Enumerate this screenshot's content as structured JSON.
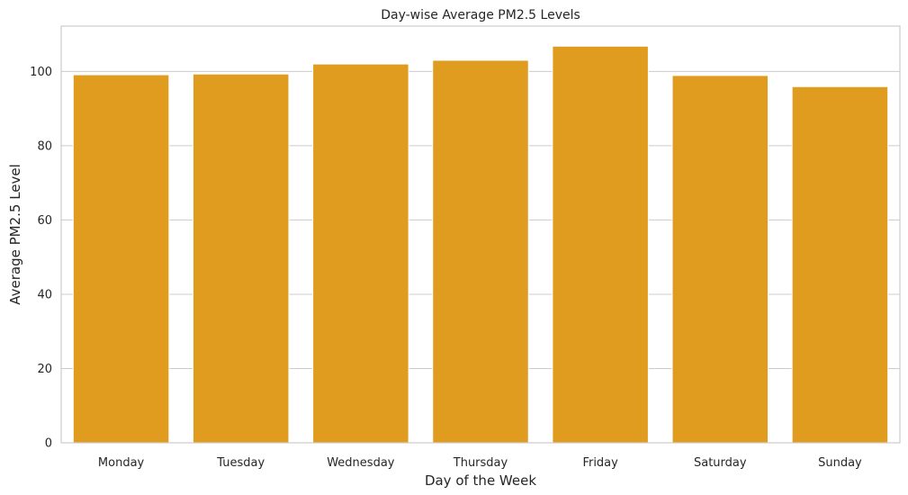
{
  "chart_data": {
    "type": "bar",
    "title": "Day-wise Average PM2.5 Levels",
    "xlabel": "Day of the Week",
    "ylabel": "Average PM2.5 Level",
    "categories": [
      "Monday",
      "Tuesday",
      "Wednesday",
      "Thursday",
      "Friday",
      "Saturday",
      "Sunday"
    ],
    "values": [
      99.1,
      99.3,
      102.0,
      103.0,
      106.8,
      98.9,
      95.9
    ],
    "ylim": [
      0,
      112.2
    ],
    "yticks": [
      0,
      20,
      40,
      60,
      80,
      100
    ],
    "grid": "horizontal",
    "bar_color": "#e09c1f",
    "background": "#ffffff"
  }
}
